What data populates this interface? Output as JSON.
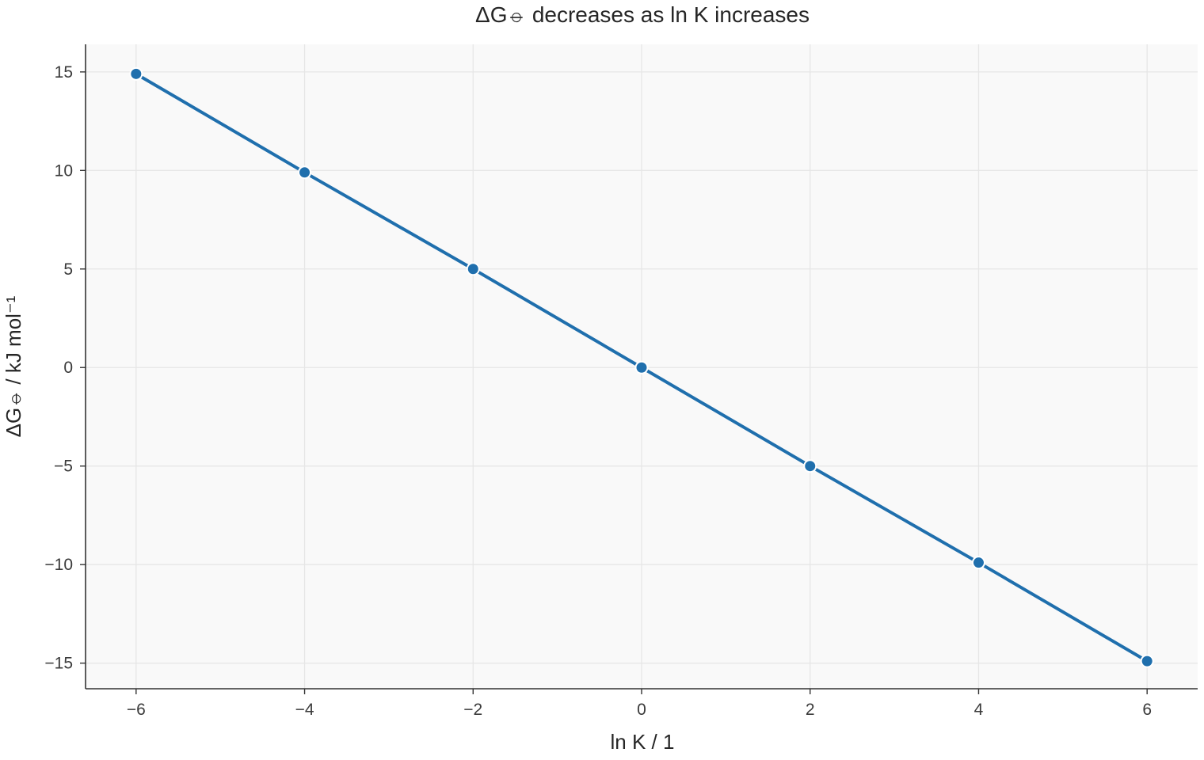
{
  "chart_data": {
    "type": "line",
    "title": "ΔG⦵ decreases as ln K increases",
    "xlabel": "ln K / 1",
    "ylabel": "ΔG⦵ / kJ mol⁻¹",
    "x": [
      -6,
      -4,
      -2,
      0,
      2,
      4,
      6
    ],
    "series": [
      {
        "values": [
          14.9,
          9.9,
          5.0,
          0.0,
          -5.0,
          -9.9,
          -14.9
        ]
      }
    ],
    "xlim": [
      -6.6,
      6.6
    ],
    "ylim": [
      -16.3,
      16.4
    ],
    "xticks": [
      -6,
      -4,
      -2,
      0,
      2,
      4,
      6
    ],
    "xtick_labels": [
      "−6",
      "−4",
      "−2",
      "0",
      "2",
      "4",
      "6"
    ],
    "yticks": [
      15,
      10,
      5,
      0,
      -5,
      -10,
      -15
    ],
    "ytick_labels": [
      "15",
      "10",
      "5",
      "0",
      "−5",
      "−10",
      "−15"
    ],
    "grid": true,
    "colors": {
      "line": "#1f6fad",
      "plot_background": "#f9f9f9",
      "grid": "#e6e6e6",
      "axis": "#333333"
    }
  }
}
